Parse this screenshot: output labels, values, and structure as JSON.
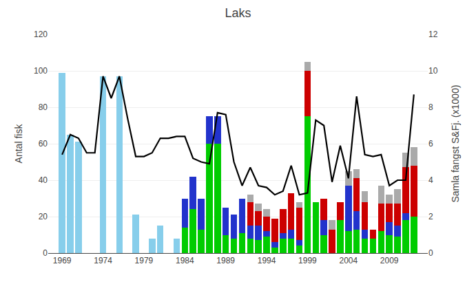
{
  "chart_data": {
    "type": "bar",
    "title": "Laks",
    "y_label": "Antal fisk",
    "y2_label": "Samla fangst S&Fj. (x1000)",
    "x": [
      1969,
      1970,
      1971,
      1972,
      1973,
      1974,
      1975,
      1976,
      1977,
      1978,
      1979,
      1980,
      1981,
      1982,
      1983,
      1984,
      1985,
      1986,
      1987,
      1988,
      1989,
      1990,
      1991,
      1992,
      1993,
      1994,
      1995,
      1996,
      1997,
      1998,
      1999,
      2000,
      2001,
      2002,
      2003,
      2004,
      2005,
      2006,
      2007,
      2008,
      2009,
      2010,
      2011,
      2012
    ],
    "stacked": true,
    "grid": true,
    "xlim": [
      1967.3,
      2013.7
    ],
    "xticks": [
      1969,
      1974,
      1979,
      1984,
      1989,
      1994,
      1999,
      2004,
      2009
    ],
    "ylim": [
      0,
      120
    ],
    "yticks": [
      0,
      20,
      40,
      60,
      80,
      100,
      120
    ],
    "y2lim": [
      0,
      12
    ],
    "y2ticks": [
      0,
      2,
      4,
      6,
      8,
      10,
      12
    ],
    "series": [
      {
        "type": "bar",
        "color": "#87CEEB",
        "values": [
          99,
          65,
          61,
          0,
          0,
          97,
          0,
          97,
          0,
          21,
          0,
          8,
          15,
          0,
          8,
          0,
          0,
          0,
          0,
          0,
          0,
          0,
          0,
          0,
          0,
          0,
          0,
          0,
          0,
          0,
          0,
          0,
          0,
          0,
          0,
          0,
          0,
          0,
          0,
          0,
          0,
          0,
          0,
          0
        ]
      },
      {
        "type": "bar",
        "color": "#00CC00",
        "values": [
          0,
          0,
          0,
          0,
          0,
          0,
          0,
          0,
          0,
          0,
          0,
          0,
          0,
          0,
          0,
          14,
          24,
          13,
          60,
          60,
          10,
          8,
          11,
          8,
          7,
          9,
          3,
          8,
          8,
          4,
          75,
          28,
          10,
          0,
          18,
          12,
          13,
          8,
          8,
          12,
          10,
          9,
          18,
          20
        ]
      },
      {
        "type": "bar",
        "color": "#2233CC",
        "values": [
          0,
          0,
          0,
          0,
          0,
          0,
          0,
          0,
          0,
          0,
          0,
          0,
          0,
          0,
          0,
          16,
          18,
          17,
          15,
          15,
          15,
          13,
          19,
          7,
          8,
          3,
          3,
          3,
          5,
          3,
          0,
          0,
          8,
          0,
          0,
          25,
          10,
          5,
          0,
          0,
          7,
          6,
          4,
          0
        ]
      },
      {
        "type": "bar",
        "color": "#CC0000",
        "values": [
          0,
          0,
          0,
          0,
          0,
          0,
          0,
          0,
          0,
          0,
          0,
          0,
          0,
          0,
          0,
          0,
          0,
          0,
          0,
          0,
          0,
          0,
          0,
          13,
          8,
          8,
          13,
          13,
          20,
          18,
          25,
          0,
          12,
          13,
          10,
          0,
          18,
          15,
          5,
          15,
          10,
          12,
          25,
          28
        ]
      },
      {
        "type": "bar",
        "color": "#AAAAAA",
        "values": [
          0,
          0,
          0,
          0,
          0,
          0,
          0,
          0,
          0,
          0,
          0,
          0,
          0,
          0,
          0,
          0,
          0,
          0,
          0,
          0,
          0,
          0,
          0,
          4,
          4,
          4,
          0,
          0,
          0,
          3,
          5,
          0,
          0,
          5,
          0,
          8,
          5,
          6,
          0,
          10,
          5,
          8,
          8,
          10
        ]
      },
      {
        "type": "line",
        "axis": "y2",
        "color": "#000000",
        "values": [
          5.4,
          6.5,
          6.3,
          5.5,
          5.5,
          9.7,
          8.5,
          9.7,
          7.4,
          5.3,
          5.3,
          5.5,
          6.3,
          6.3,
          6.4,
          6.4,
          5.2,
          5.0,
          4.9,
          7.7,
          7.6,
          5.0,
          3.7,
          4.7,
          3.7,
          3.6,
          3.2,
          3.4,
          4.8,
          3.2,
          3.3,
          7.3,
          7.0,
          3.9,
          5.9,
          4.1,
          8.6,
          5.4,
          5.3,
          5.4,
          3.7,
          4.0,
          4.0,
          8.7
        ]
      }
    ]
  }
}
